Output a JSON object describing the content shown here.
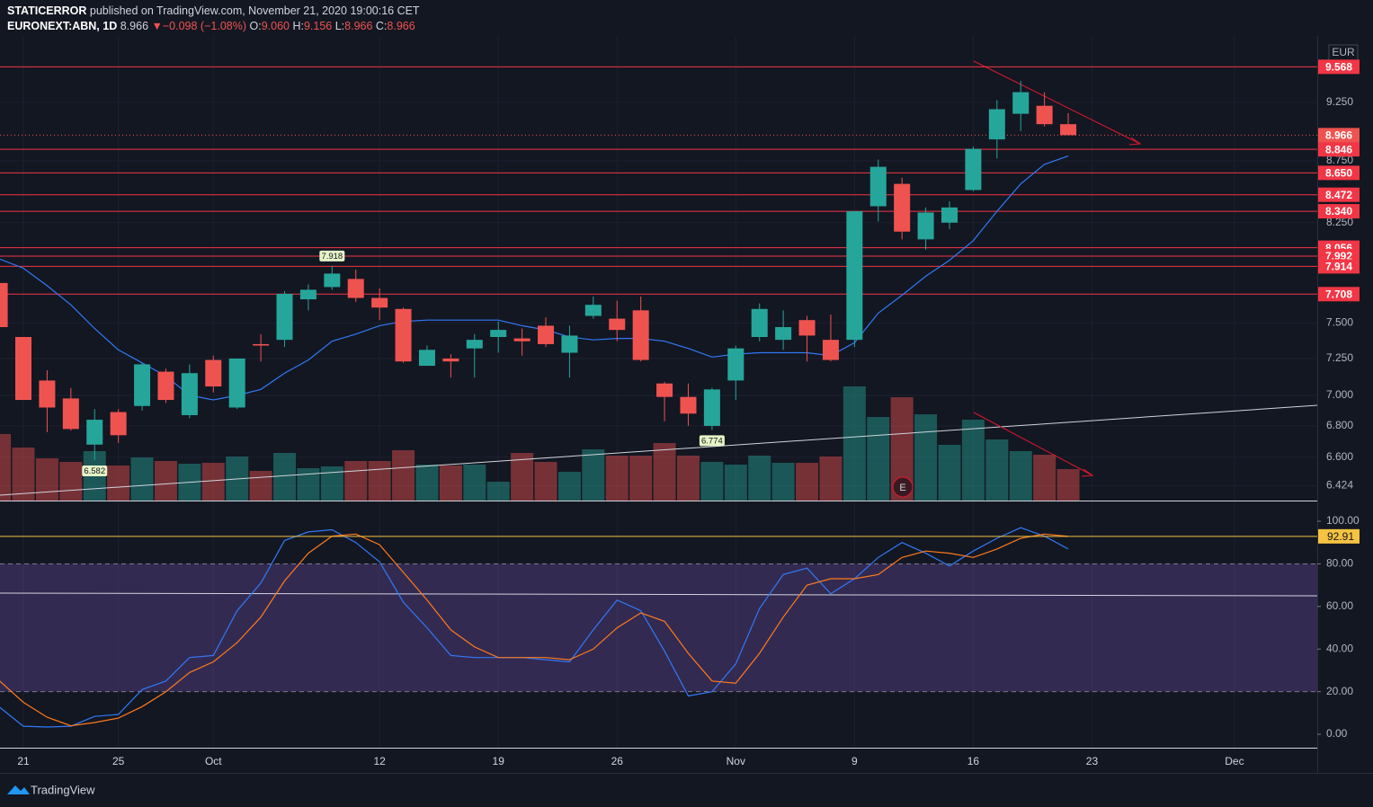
{
  "header": {
    "author": "STATICERROR",
    "published": "published on TradingView.com, November 21, 2020 19:00:16 CET",
    "symbol": "EURONEXT:ABN, 1D",
    "last": "8.966",
    "arrow": "▼",
    "change": "−0.098 (−1.08%)",
    "o_label": "O:",
    "o": "9.060",
    "h_label": "H:",
    "h": "9.156",
    "l_label": "L:",
    "l": "8.966",
    "c_label": "C:",
    "c": "8.966"
  },
  "currency": "EUR",
  "earnings": "E",
  "brand": "TradingView",
  "chart_data": [
    {
      "type": "candlestick",
      "log": true,
      "categories": [
        null,
        "21",
        null,
        null,
        null,
        "25",
        null,
        null,
        null,
        "Oct",
        null,
        null,
        null,
        null,
        null,
        null,
        "12",
        null,
        null,
        null,
        null,
        "19",
        null,
        null,
        null,
        null,
        "26",
        null,
        null,
        null,
        null,
        "Nov",
        null,
        null,
        null,
        null,
        "9",
        null,
        null,
        null,
        null,
        "16",
        null,
        null,
        null,
        null,
        "23",
        null,
        null,
        null,
        null,
        null,
        "Dec",
        null,
        null,
        null
      ],
      "open": [
        7.79,
        7.4,
        7.1,
        6.98,
        6.68,
        6.89,
        6.93,
        7.16,
        6.87,
        7.24,
        6.92,
        7.35,
        7.38,
        7.67,
        7.76,
        7.82,
        7.68,
        7.6,
        7.2,
        7.25,
        7.32,
        7.4,
        7.39,
        7.48,
        7.29,
        7.55,
        7.53,
        7.59,
        7.08,
        6.99,
        6.8,
        7.1,
        7.4,
        7.38,
        7.52,
        7.38,
        7.38,
        8.38,
        8.56,
        8.12,
        8.25,
        8.51,
        8.93,
        9.15,
        9.22,
        9.06,
        null,
        null,
        null,
        null,
        null,
        null,
        null,
        null,
        null,
        null
      ],
      "high": [
        7.79,
        7.4,
        7.17,
        7.05,
        6.91,
        6.91,
        7.22,
        7.18,
        7.21,
        7.27,
        7.25,
        7.42,
        7.73,
        7.78,
        7.918,
        7.89,
        7.75,
        7.61,
        7.34,
        7.28,
        7.42,
        7.51,
        7.46,
        7.54,
        7.48,
        7.69,
        7.66,
        7.69,
        7.09,
        7.08,
        7.05,
        7.34,
        7.64,
        7.59,
        7.55,
        7.56,
        8.34,
        8.76,
        8.61,
        8.37,
        8.42,
        8.87,
        9.27,
        9.44,
        9.34,
        9.156,
        null,
        null,
        null,
        null,
        null,
        null,
        null,
        null,
        null,
        null
      ],
      "low": [
        7.47,
        6.97,
        6.76,
        6.77,
        6.582,
        6.69,
        6.9,
        6.95,
        6.85,
        7.02,
        6.91,
        7.23,
        7.33,
        7.59,
        7.74,
        7.65,
        7.52,
        7.22,
        7.2,
        7.12,
        7.12,
        7.29,
        7.27,
        7.33,
        7.12,
        7.53,
        7.37,
        7.23,
        6.83,
        6.8,
        6.774,
        6.97,
        7.37,
        7.31,
        7.23,
        7.23,
        7.33,
        8.26,
        8.12,
        8.04,
        8.2,
        8.5,
        8.77,
        9.0,
        9.04,
        8.966,
        null,
        null,
        null,
        null,
        null,
        null,
        null,
        null,
        null,
        null
      ],
      "close": [
        7.47,
        6.97,
        6.92,
        6.78,
        6.84,
        6.74,
        7.21,
        6.97,
        7.15,
        7.06,
        7.25,
        7.34,
        7.71,
        7.74,
        7.86,
        7.68,
        7.61,
        7.23,
        7.31,
        7.23,
        7.38,
        7.45,
        7.37,
        7.35,
        7.41,
        7.63,
        7.45,
        7.24,
        6.99,
        6.88,
        7.04,
        7.32,
        7.6,
        7.47,
        7.41,
        7.24,
        8.34,
        8.7,
        8.18,
        8.33,
        8.37,
        8.85,
        9.19,
        9.34,
        9.06,
        8.966,
        null,
        null,
        null,
        null,
        null,
        null,
        null,
        null,
        null,
        null
      ],
      "up_color": "#26a69a",
      "down_color": "#ef5350",
      "volume": {
        "values": [
          74,
          59,
          47,
          43,
          55,
          39,
          48,
          44,
          41,
          42,
          49,
          33,
          53,
          36,
          38,
          44,
          44,
          56,
          40,
          39,
          40,
          21,
          53,
          43,
          32,
          57,
          50,
          50,
          64,
          50,
          43,
          40,
          50,
          42,
          42,
          49,
          127,
          93,
          115,
          96,
          62,
          90,
          68,
          55,
          51,
          35,
          null,
          null,
          null,
          null,
          null,
          null,
          null,
          null,
          null,
          null
        ],
        "vlim": [
          0,
          517
        ]
      },
      "ma": {
        "color": "#3179f5",
        "values": [
          7.97,
          7.9,
          7.77,
          7.63,
          7.46,
          7.31,
          7.22,
          7.13,
          7.0,
          6.97,
          7.0,
          7.04,
          7.15,
          7.24,
          7.37,
          7.42,
          7.48,
          7.51,
          7.52,
          7.52,
          7.52,
          7.52,
          7.48,
          7.45,
          7.4,
          7.38,
          7.39,
          7.39,
          7.37,
          7.32,
          7.26,
          7.28,
          7.29,
          7.29,
          7.29,
          7.27,
          7.36,
          7.57,
          7.7,
          7.84,
          7.96,
          8.11,
          8.34,
          8.56,
          8.72,
          8.79,
          null,
          null,
          null,
          null,
          null,
          null,
          null,
          null,
          null,
          null
        ]
      },
      "ylim": [
        6.334,
        9.853
      ],
      "yticks": [
        {
          "value": 9.25,
          "label": "9.250"
        },
        {
          "value": 8.75,
          "label": "8.750"
        },
        {
          "value": 8.25,
          "label": "8.250"
        },
        {
          "value": 7.5,
          "label": "7.500"
        },
        {
          "value": 7.25,
          "label": "7.250"
        },
        {
          "value": 7.0,
          "label": "7.000"
        },
        {
          "value": 6.8,
          "label": "6.800"
        },
        {
          "value": 6.6,
          "label": "6.600"
        },
        6.424
      ],
      "levels": [
        9.568,
        8.846,
        {
          "value": 8.65,
          "label": "8.650"
        },
        8.472,
        {
          "value": 8.34,
          "label": "8.340"
        },
        8.056,
        7.992,
        7.914,
        7.708
      ],
      "level_color": "#f23645",
      "last_price": 8.966,
      "markers": [
        7.918,
        6.582,
        6.774
      ]
    },
    {
      "type": "line",
      "series": [
        {
          "color": "#3179f5",
          "values": [
            12.7,
            3.8,
            3.4,
            3.8,
            8.4,
            9.3,
            21,
            25,
            36,
            37,
            58,
            71,
            91,
            95,
            96,
            90,
            81,
            62,
            50,
            37,
            36,
            36,
            36,
            35,
            34,
            49,
            63,
            58,
            39,
            18,
            20,
            33,
            59,
            75,
            78,
            66,
            73,
            83,
            90,
            85,
            79,
            86,
            92,
            97,
            93,
            87,
            null,
            null,
            null,
            null,
            null,
            null,
            null,
            null,
            null,
            null
          ]
        },
        {
          "color": "#ff7a1a",
          "values": [
            25,
            15,
            8,
            4,
            5.5,
            7.6,
            13,
            20,
            29,
            34,
            43,
            55,
            72,
            85,
            93,
            94,
            89,
            76,
            63,
            49,
            41,
            36,
            36,
            36,
            35,
            40,
            50,
            57,
            53,
            38,
            25,
            24,
            38,
            55,
            70,
            73,
            73,
            75,
            83,
            86,
            85,
            83,
            87,
            92,
            94,
            92.91,
            null,
            null,
            null,
            null,
            null,
            null,
            null,
            null,
            null,
            null
          ]
        }
      ],
      "ylim": [
        -6.3,
        109.3
      ],
      "yticks": [
        {
          "value": 100,
          "label": "100.00"
        },
        {
          "value": 80,
          "label": "80.00"
        },
        {
          "value": 60,
          "label": "60.00"
        },
        {
          "value": 40,
          "label": "40.00"
        },
        {
          "value": 20,
          "label": "20.00"
        },
        {
          "value": 0,
          "label": "0.00"
        }
      ],
      "band": [
        20,
        80
      ],
      "band_color": "#7e57c2"
    }
  ]
}
